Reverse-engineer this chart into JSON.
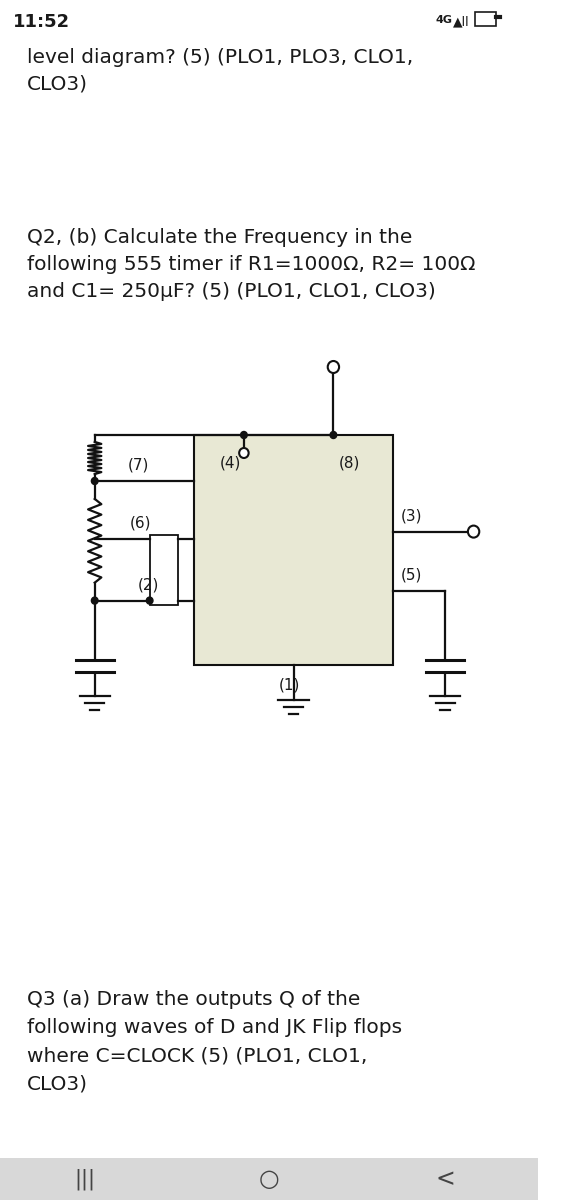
{
  "bg_color": "#ffffff",
  "status_bar_text": "11:52",
  "text_color": "#1a1a1a",
  "line1": "level diagram? (5) (PLO1, PLO3, CLO1,",
  "line2": "CLO3)",
  "q2_text_line1": "Q2, (b) Calculate the Frequency in the",
  "q2_text_line2": "following 555 timer if R1=1000Ω, R2= 100Ω",
  "q2_text_line3": "and C1= 250μF? (5) (PLO1, CLO1, CLO3)",
  "q3_text_line1": "Q3 (a) Draw the outputs Q of the",
  "q3_text_line2": "following waves of D and JK Flip flops",
  "q3_text_line3": "where C=CLOCK (5) (PLO1, CLO1,",
  "q3_text_line4": "CLO3)",
  "chip_fill": "#e8e8d4",
  "font_size_body": 14.5,
  "nav_bar_color": "#d8d8d8",
  "lc": "#111111",
  "lw": 1.6
}
